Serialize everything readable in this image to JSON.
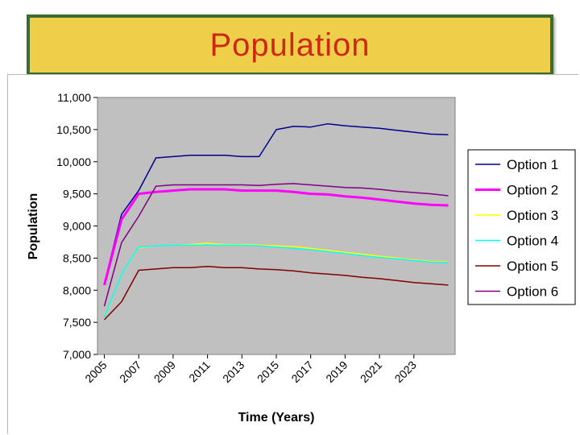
{
  "title": "Population",
  "colors": {
    "banner_bg": "#efcf4a",
    "banner_border": "#3d6b2e",
    "title_text": "#cc2a10",
    "plot_bg": "#c0c0c0"
  },
  "chart_data": {
    "type": "line",
    "title": "",
    "xlabel": "Time (Years)",
    "ylabel": "Population",
    "ylim": [
      7000,
      11000
    ],
    "yticks": [
      7000,
      7500,
      8000,
      8500,
      9000,
      9500,
      10000,
      10500,
      11000
    ],
    "ytick_labels": [
      "7,000",
      "7,500",
      "8,000",
      "8,500",
      "9,000",
      "9,500",
      "10,000",
      "10,500",
      "11,000"
    ],
    "xlim": [
      2004.6,
      2025.4
    ],
    "xticks": [
      2005,
      2007,
      2009,
      2011,
      2013,
      2015,
      2017,
      2019,
      2021,
      2023
    ],
    "xtick_labels": [
      "2005",
      "2007",
      "2009",
      "2011",
      "2013",
      "2015",
      "2017",
      "2019",
      "2021",
      "2023"
    ],
    "grid": false,
    "legend_position": "right",
    "x": [
      2005,
      2006,
      2007,
      2008,
      2009,
      2010,
      2011,
      2012,
      2013,
      2014,
      2015,
      2016,
      2017,
      2018,
      2019,
      2020,
      2021,
      2022,
      2023,
      2024,
      2025
    ],
    "series": [
      {
        "name": "Option 1",
        "color": "#00008b",
        "width": 1.5,
        "values": [
          8100,
          9180,
          9550,
          10060,
          10080,
          10100,
          10100,
          10100,
          10080,
          10080,
          10500,
          10550,
          10540,
          10590,
          10560,
          10540,
          10520,
          10490,
          10460,
          10430,
          10420
        ]
      },
      {
        "name": "Option 2",
        "color": "#ff00ff",
        "width": 3,
        "values": [
          8080,
          9100,
          9500,
          9530,
          9550,
          9570,
          9570,
          9570,
          9550,
          9550,
          9550,
          9530,
          9500,
          9490,
          9460,
          9440,
          9410,
          9380,
          9350,
          9330,
          9320
        ]
      },
      {
        "name": "Option 3",
        "color": "#ffff00",
        "width": 1.5,
        "values": [
          7560,
          8250,
          8660,
          8690,
          8700,
          8710,
          8730,
          8710,
          8710,
          8700,
          8690,
          8680,
          8650,
          8620,
          8590,
          8560,
          8530,
          8500,
          8470,
          8450,
          8440
        ]
      },
      {
        "name": "Option 4",
        "color": "#00ffff",
        "width": 1.5,
        "values": [
          7570,
          8250,
          8670,
          8690,
          8700,
          8700,
          8700,
          8700,
          8700,
          8690,
          8670,
          8650,
          8630,
          8600,
          8570,
          8540,
          8510,
          8490,
          8460,
          8440,
          8430
        ]
      },
      {
        "name": "Option 5",
        "color": "#800000",
        "width": 1.5,
        "values": [
          7540,
          7820,
          8310,
          8330,
          8350,
          8350,
          8370,
          8350,
          8350,
          8330,
          8320,
          8300,
          8270,
          8250,
          8230,
          8200,
          8180,
          8150,
          8120,
          8100,
          8080
        ]
      },
      {
        "name": "Option 6",
        "color": "#800080",
        "width": 1.5,
        "values": [
          7750,
          8740,
          9150,
          9620,
          9640,
          9640,
          9640,
          9640,
          9640,
          9630,
          9650,
          9660,
          9640,
          9620,
          9600,
          9590,
          9570,
          9540,
          9520,
          9500,
          9470
        ]
      }
    ]
  }
}
